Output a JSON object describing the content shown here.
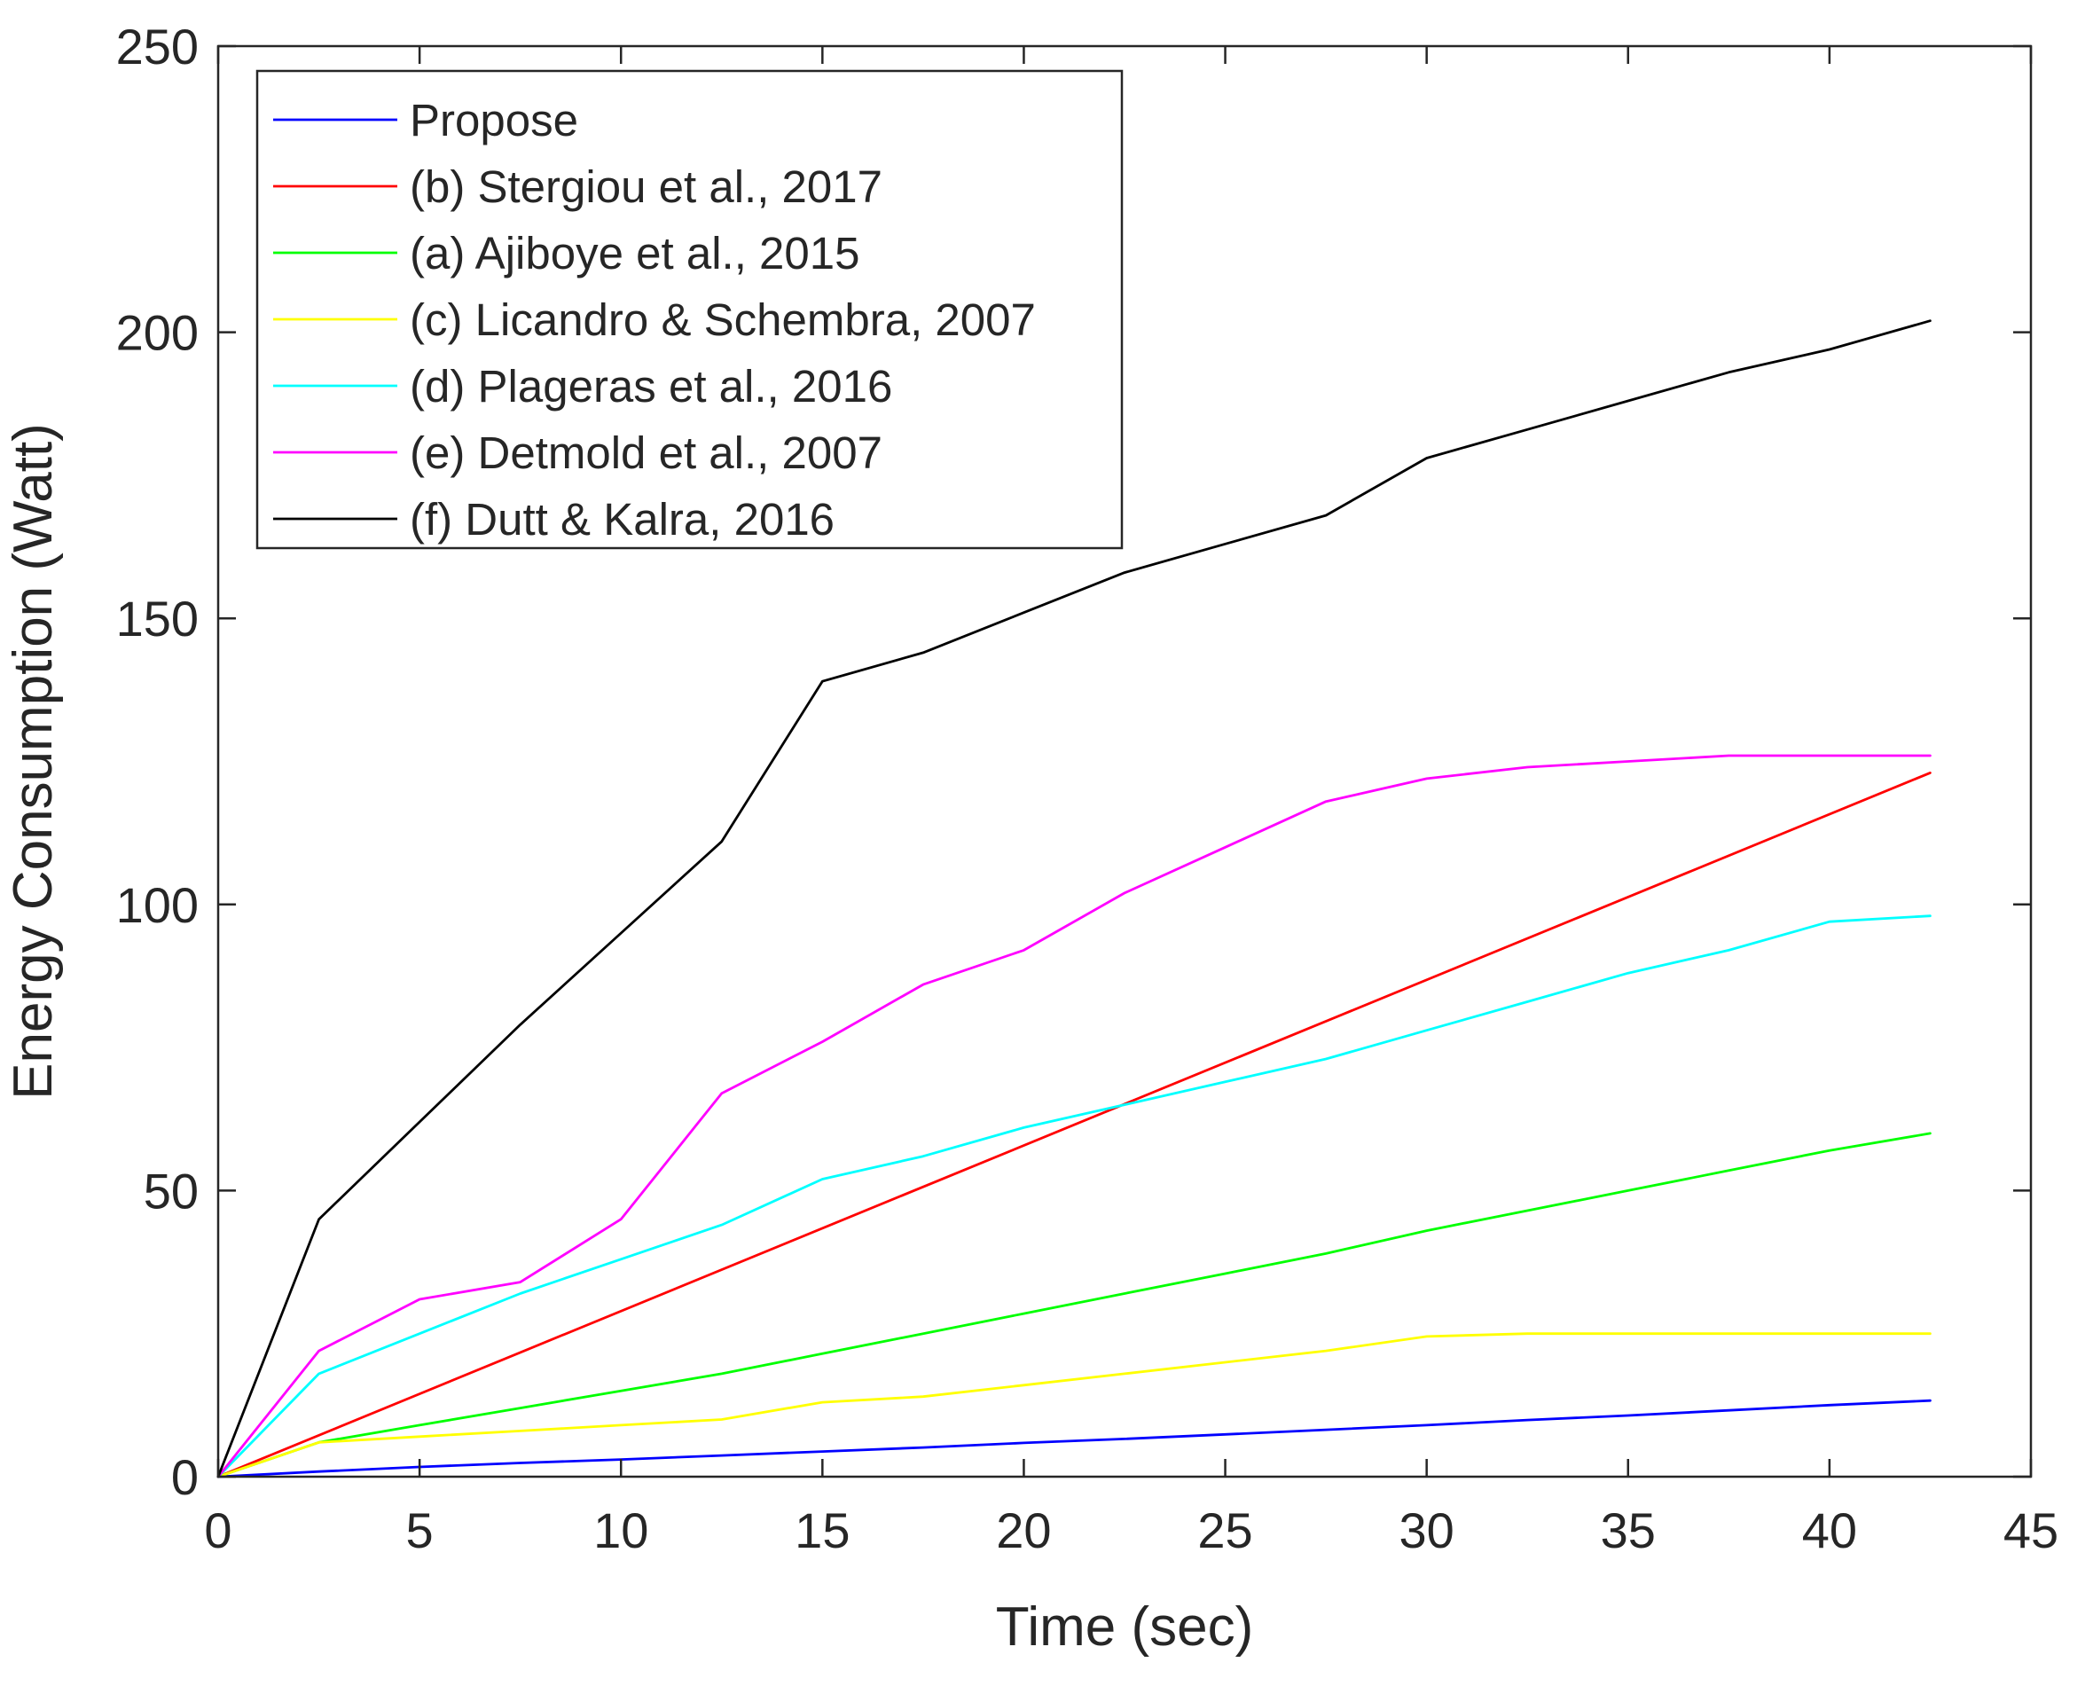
{
  "chart_data": {
    "type": "line",
    "title": "",
    "xlabel": "Time (sec)",
    "ylabel": "Energy Consumption (Watt)",
    "xlim": [
      0,
      45
    ],
    "ylim": [
      0,
      250
    ],
    "xticks": [
      0,
      5,
      10,
      15,
      20,
      25,
      30,
      35,
      40,
      45
    ],
    "yticks": [
      0,
      50,
      100,
      150,
      200,
      250
    ],
    "grid": false,
    "legend_position": "top-left",
    "series": [
      {
        "name": "Propose",
        "color": "#0000ff",
        "x": [
          0,
          2.5,
          5,
          7.5,
          10,
          12.5,
          15,
          17.5,
          20,
          22.5,
          25,
          27.5,
          30,
          32.5,
          35,
          37.5,
          40,
          42.5
        ],
        "y": [
          0,
          0.9,
          1.7,
          2.4,
          3.0,
          3.7,
          4.4,
          5.1,
          5.9,
          6.6,
          7.4,
          8.2,
          9.0,
          9.9,
          10.7,
          11.6,
          12.5,
          13.3
        ]
      },
      {
        "name": "(b) Stergiou et al., 2017",
        "color": "#ff0000",
        "x": [
          0,
          42.5
        ],
        "y": [
          0,
          123
        ]
      },
      {
        "name": "(a) Ajiboye et al., 2015",
        "color": "#00ff00",
        "x": [
          0,
          2.5,
          5,
          7.5,
          10,
          12.5,
          15,
          17.5,
          20,
          22.5,
          25,
          27.5,
          30,
          32.5,
          35,
          37.5,
          40,
          42.5
        ],
        "y": [
          0,
          6,
          9,
          12,
          15,
          18,
          21.5,
          25,
          28.5,
          32,
          35.5,
          39,
          43,
          46.5,
          50,
          53.5,
          57,
          60
        ]
      },
      {
        "name": "(c) Licandro & Schembra, 2007",
        "color": "#ffff00",
        "x": [
          0,
          2.5,
          5,
          7.5,
          10,
          12.5,
          15,
          17.5,
          20,
          22.5,
          25,
          27.5,
          30,
          32.5,
          35,
          37.5,
          40,
          42.5
        ],
        "y": [
          0,
          6,
          7,
          8,
          9,
          10,
          13,
          14,
          16,
          18,
          20,
          22,
          24.5,
          25,
          25,
          25,
          25,
          25
        ]
      },
      {
        "name": "(d) Plageras et al., 2016",
        "color": "#00ffff",
        "x": [
          0,
          2.5,
          5,
          7.5,
          10,
          12.5,
          15,
          17.5,
          20,
          22.5,
          25,
          27.5,
          30,
          32.5,
          35,
          37.5,
          40,
          42.5
        ],
        "y": [
          0,
          18,
          25,
          32,
          38,
          44,
          52,
          56,
          61,
          65,
          69,
          73,
          78,
          83,
          88,
          92,
          97,
          98
        ]
      },
      {
        "name": "(e) Detmold et al., 2007",
        "color": "#ff00ff",
        "x": [
          0,
          2.5,
          5,
          7.5,
          10,
          12.5,
          15,
          17.5,
          20,
          22.5,
          25,
          27.5,
          30,
          32.5,
          35,
          37.5,
          40,
          42.5
        ],
        "y": [
          0,
          22,
          31,
          34,
          45,
          67,
          76,
          86,
          92,
          102,
          110,
          118,
          122,
          124,
          125,
          126,
          126,
          126
        ]
      },
      {
        "name": "(f) Dutt & Kalra, 2016",
        "color": "#000000",
        "x": [
          0,
          2.5,
          5,
          7.5,
          10,
          12.5,
          15,
          17.5,
          20,
          22.5,
          25,
          27.5,
          30,
          32.5,
          35,
          37.5,
          40,
          42.5
        ],
        "y": [
          0,
          45,
          62,
          79,
          95,
          111,
          139,
          144,
          151,
          158,
          163,
          168,
          178,
          183,
          188,
          193,
          197,
          202
        ]
      }
    ]
  }
}
